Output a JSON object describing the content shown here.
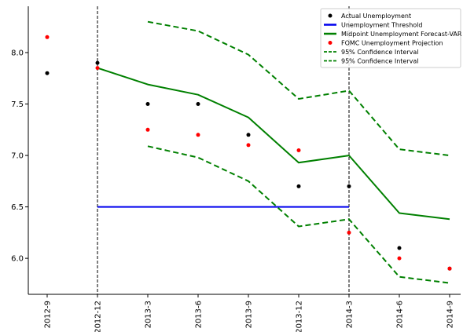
{
  "chart_data": {
    "type": "line",
    "categories": [
      "2012-9",
      "2012-12",
      "2013-3",
      "2013-6",
      "2013-9",
      "2013-12",
      "2014-3",
      "2014-6",
      "2014-9"
    ],
    "ylim": [
      5.65,
      8.45
    ],
    "yticks": [
      "6.0",
      "6.5",
      "7.0",
      "7.5",
      "8.0"
    ],
    "grid": false,
    "legend_position": "top-right",
    "vertical_lines": [
      "2012-12",
      "2014-3"
    ],
    "series": [
      {
        "name": "Actual Unemployment",
        "kind": "scatter",
        "color": "#000000",
        "points": [
          [
            "2012-9",
            7.8
          ],
          [
            "2012-12",
            7.9
          ],
          [
            "2013-3",
            7.5
          ],
          [
            "2013-6",
            7.5
          ],
          [
            "2013-9",
            7.2
          ],
          [
            "2013-12",
            6.7
          ],
          [
            "2014-3",
            6.7
          ],
          [
            "2014-6",
            6.1
          ],
          [
            "2014-9",
            5.9
          ]
        ]
      },
      {
        "name": "Unemployment Threshold",
        "kind": "line",
        "color": "#0000ee",
        "dashed": false,
        "points": [
          [
            "2012-12",
            6.5
          ],
          [
            "2014-3",
            6.5
          ]
        ]
      },
      {
        "name": "Midpoint Unemployment Forecast-VAR",
        "kind": "line",
        "color": "#008000",
        "dashed": false,
        "points": [
          [
            "2012-12",
            7.85
          ],
          [
            "2013-3",
            7.69
          ],
          [
            "2013-6",
            7.59
          ],
          [
            "2013-9",
            7.37
          ],
          [
            "2013-12",
            6.93
          ],
          [
            "2014-3",
            7.0
          ],
          [
            "2014-6",
            6.44
          ],
          [
            "2014-9",
            6.38
          ]
        ]
      },
      {
        "name": "FOMC Unemployment Projection",
        "kind": "scatter",
        "color": "#ff0000",
        "points": [
          [
            "2012-9",
            8.15
          ],
          [
            "2012-12",
            7.85
          ],
          [
            "2013-3",
            7.25
          ],
          [
            "2013-6",
            7.2
          ],
          [
            "2013-9",
            7.1
          ],
          [
            "2013-12",
            7.05
          ],
          [
            "2014-3",
            6.25
          ],
          [
            "2014-6",
            6.0
          ],
          [
            "2014-9",
            5.9
          ]
        ]
      },
      {
        "name": "95% Confidence Interval",
        "kind": "line",
        "color": "#008000",
        "dashed": true,
        "points": [
          [
            "2013-3",
            8.3
          ],
          [
            "2013-6",
            8.21
          ],
          [
            "2013-9",
            7.98
          ],
          [
            "2013-12",
            7.55
          ],
          [
            "2014-3",
            7.63
          ],
          [
            "2014-6",
            7.06
          ],
          [
            "2014-9",
            7.0
          ]
        ]
      },
      {
        "name": "95% Confidence Interval",
        "kind": "line",
        "color": "#008000",
        "dashed": true,
        "points": [
          [
            "2013-3",
            7.09
          ],
          [
            "2013-6",
            6.98
          ],
          [
            "2013-9",
            6.75
          ],
          [
            "2013-12",
            6.31
          ],
          [
            "2014-3",
            6.38
          ],
          [
            "2014-6",
            5.82
          ],
          [
            "2014-9",
            5.76
          ]
        ]
      }
    ]
  }
}
